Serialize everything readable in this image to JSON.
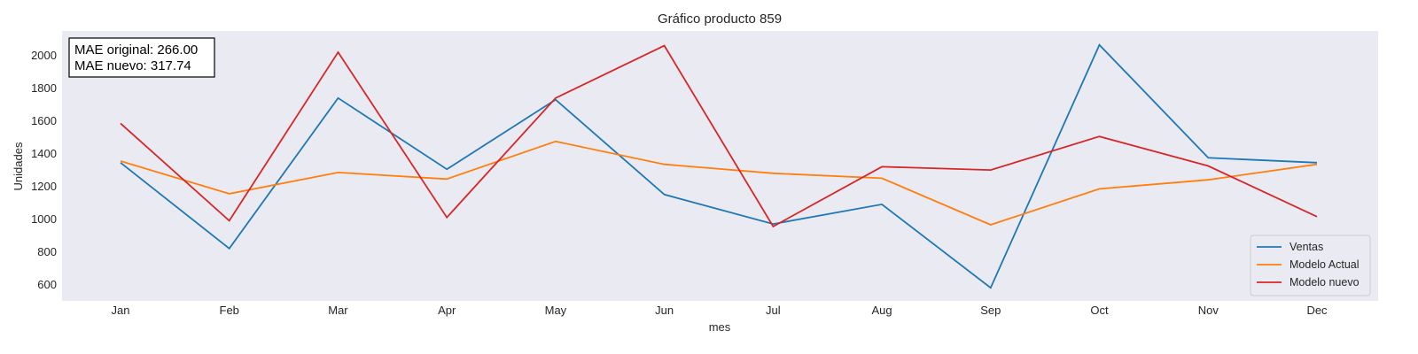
{
  "chart_data": {
    "type": "line",
    "title": "Gráfico producto 859",
    "xlabel": "mes",
    "ylabel": "Unidades",
    "categories": [
      "Jan",
      "Feb",
      "Mar",
      "Apr",
      "May",
      "Jun",
      "Jul",
      "Aug",
      "Sep",
      "Oct",
      "Nov",
      "Dec"
    ],
    "ylim": [
      500,
      2150
    ],
    "yticks": [
      600,
      800,
      1000,
      1200,
      1400,
      1600,
      1800,
      2000
    ],
    "grid": false,
    "legend_position": "lower-right",
    "series": [
      {
        "name": "Ventas",
        "color": "#1f77b4",
        "values": [
          1345,
          820,
          1740,
          1305,
          1730,
          1150,
          970,
          1090,
          580,
          2065,
          1375,
          1345
        ]
      },
      {
        "name": "Modelo Actual",
        "color": "#ff7f0e",
        "values": [
          1355,
          1155,
          1285,
          1245,
          1475,
          1335,
          1280,
          1250,
          965,
          1185,
          1240,
          1335
        ]
      },
      {
        "name": "Modelo nuevo",
        "color": "#d62728",
        "values": [
          1585,
          990,
          2020,
          1010,
          1740,
          2060,
          955,
          1320,
          1300,
          1505,
          1325,
          1015
        ]
      }
    ],
    "annotation": {
      "lines": [
        "MAE original: 266.00",
        "MAE nuevo: 317.74"
      ]
    }
  },
  "colors": {
    "plot_background": "#eaeaf2",
    "text": "#262626"
  }
}
